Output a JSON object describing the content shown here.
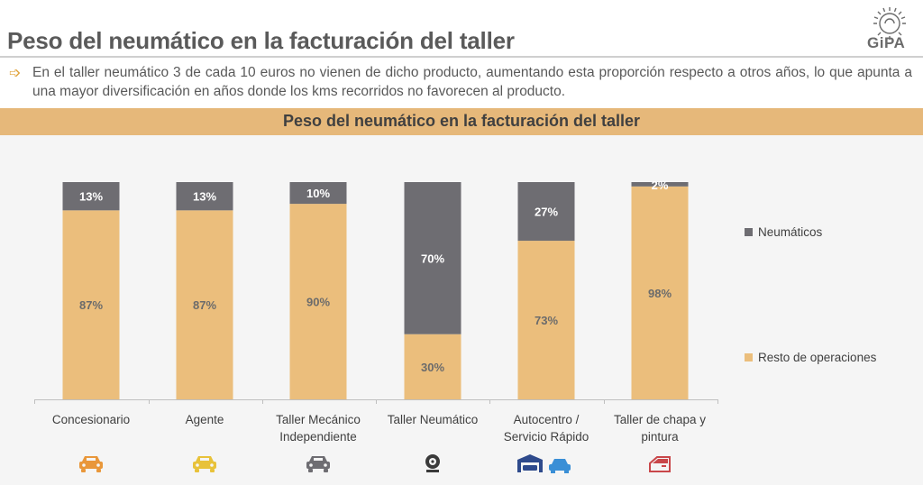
{
  "header": {
    "title": "Peso del neumático en la facturación del taller",
    "logo_text": "GiPA"
  },
  "intro": {
    "text": "En el taller neumático 3 de cada 10 euros no vienen de dicho producto, aumentando esta proporción respecto a otros años, lo que apunta a una mayor diversificación en años donde los kms recorridos no favorecen al producto."
  },
  "colors": {
    "accent": "#e0a33b",
    "band": "#e6b87a",
    "neumaticos": "#6e6d72",
    "resto": "#ebbe7c",
    "icon_orange": "#e9973a",
    "icon_yellow": "#e8c23a",
    "icon_gray": "#6e6d72",
    "icon_black": "#3a3a3a",
    "icon_navy": "#2e4a8c",
    "icon_blue": "#3a8fd6",
    "icon_red": "#c9474a"
  },
  "chart_data": {
    "type": "bar",
    "stacked": true,
    "title": "Peso del neumático en la facturación del taller",
    "categories": [
      "Concesionario",
      "Agente",
      "Taller Mecánico Independiente",
      "Taller Neumático",
      "Autocentro / Servicio Rápido",
      "Taller de chapa y pintura"
    ],
    "category_lines": [
      [
        "Concesionario"
      ],
      [
        "Agente"
      ],
      [
        "Taller Mecánico",
        "Independiente"
      ],
      [
        "Taller Neumático"
      ],
      [
        "Autocentro /",
        "Servicio Rápido"
      ],
      [
        "Taller de chapa y",
        "pintura"
      ]
    ],
    "series": [
      {
        "name": "Resto de operaciones",
        "values": [
          87,
          87,
          90,
          30,
          73,
          98
        ],
        "labels": [
          "87%",
          "87%",
          "90%",
          "30%",
          "73%",
          "98%"
        ]
      },
      {
        "name": "Neumáticos",
        "values": [
          13,
          13,
          10,
          70,
          27,
          2
        ],
        "labels": [
          "13%",
          "13%",
          "10%",
          "70%",
          "27%",
          "2%"
        ]
      }
    ],
    "ylim": [
      0,
      100
    ],
    "unit": "%",
    "legend": "right",
    "grid": false,
    "category_icons": [
      "car-icon",
      "car-icon",
      "car-repair-icon",
      "tire-icon",
      "garage-car-icon",
      "car-door-icon"
    ]
  }
}
